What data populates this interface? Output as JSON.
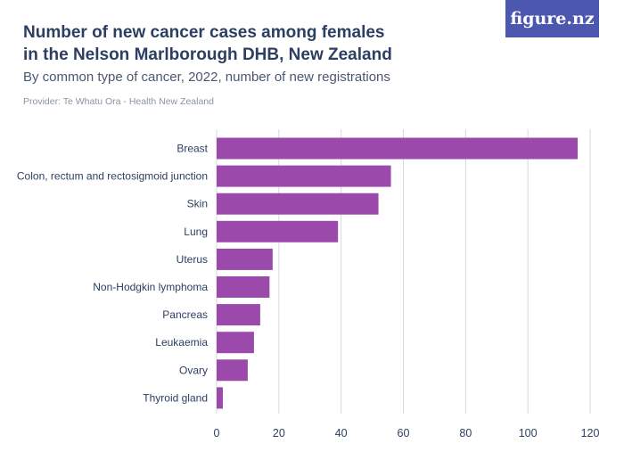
{
  "header": {
    "title": "Number of new cancer cases among females in the Nelson Marlborough DHB, New Zealand",
    "subtitle": "By common type of cancer, 2022, number of new registrations",
    "provider": "Provider: Te Whatu Ora - Health New Zealand",
    "logo_text": "figure.nz"
  },
  "colors": {
    "bar": "#9b4aab",
    "title": "#2c3e61",
    "logo_bg": "#4c57b0"
  },
  "chart_data": {
    "type": "bar",
    "orientation": "horizontal",
    "title": "Number of new cancer cases among females in the Nelson Marlborough DHB, New Zealand",
    "subtitle": "By common type of cancer, 2022, number of new registrations",
    "categories": [
      "Breast",
      "Colon, rectum and rectosigmoid junction",
      "Skin",
      "Lung",
      "Uterus",
      "Non-Hodgkin lymphoma",
      "Pancreas",
      "Leukaemia",
      "Ovary",
      "Thyroid gland"
    ],
    "values": [
      116,
      56,
      52,
      39,
      18,
      17,
      14,
      12,
      10,
      2
    ],
    "xlabel": "",
    "ylabel": "",
    "xlim": [
      0,
      120
    ],
    "xticks": [
      0,
      20,
      40,
      60,
      80,
      100,
      120
    ],
    "grid": true
  }
}
